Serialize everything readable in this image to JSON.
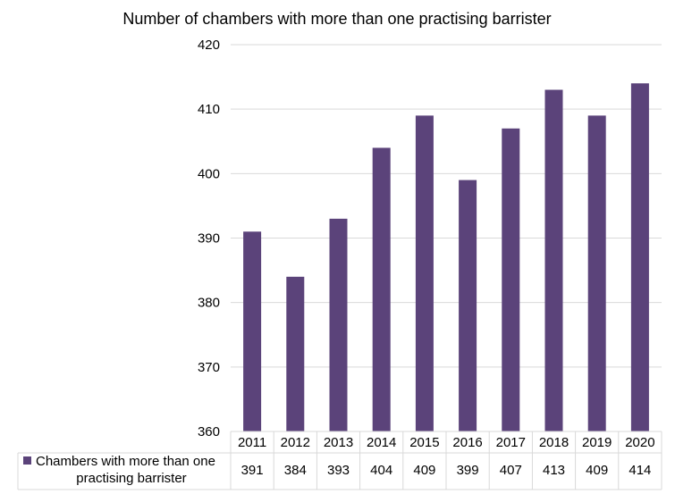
{
  "chart_data": {
    "type": "bar",
    "title": "Number of chambers with more than one practising barrister",
    "categories": [
      "2011",
      "2012",
      "2013",
      "2014",
      "2015",
      "2016",
      "2017",
      "2018",
      "2019",
      "2020"
    ],
    "series": [
      {
        "name": "Chambers with more than one practising barrister",
        "name_lines": [
          "Chambers with more than one",
          "practising barrister"
        ],
        "values": [
          391,
          384,
          393,
          404,
          409,
          399,
          407,
          413,
          409,
          414
        ],
        "color": "#5B437A"
      }
    ],
    "ylim": [
      360,
      420
    ],
    "yticks": [
      360,
      370,
      380,
      390,
      400,
      410,
      420
    ],
    "xlabel": "",
    "ylabel": "",
    "grid": true,
    "legend": "data-table-below"
  }
}
